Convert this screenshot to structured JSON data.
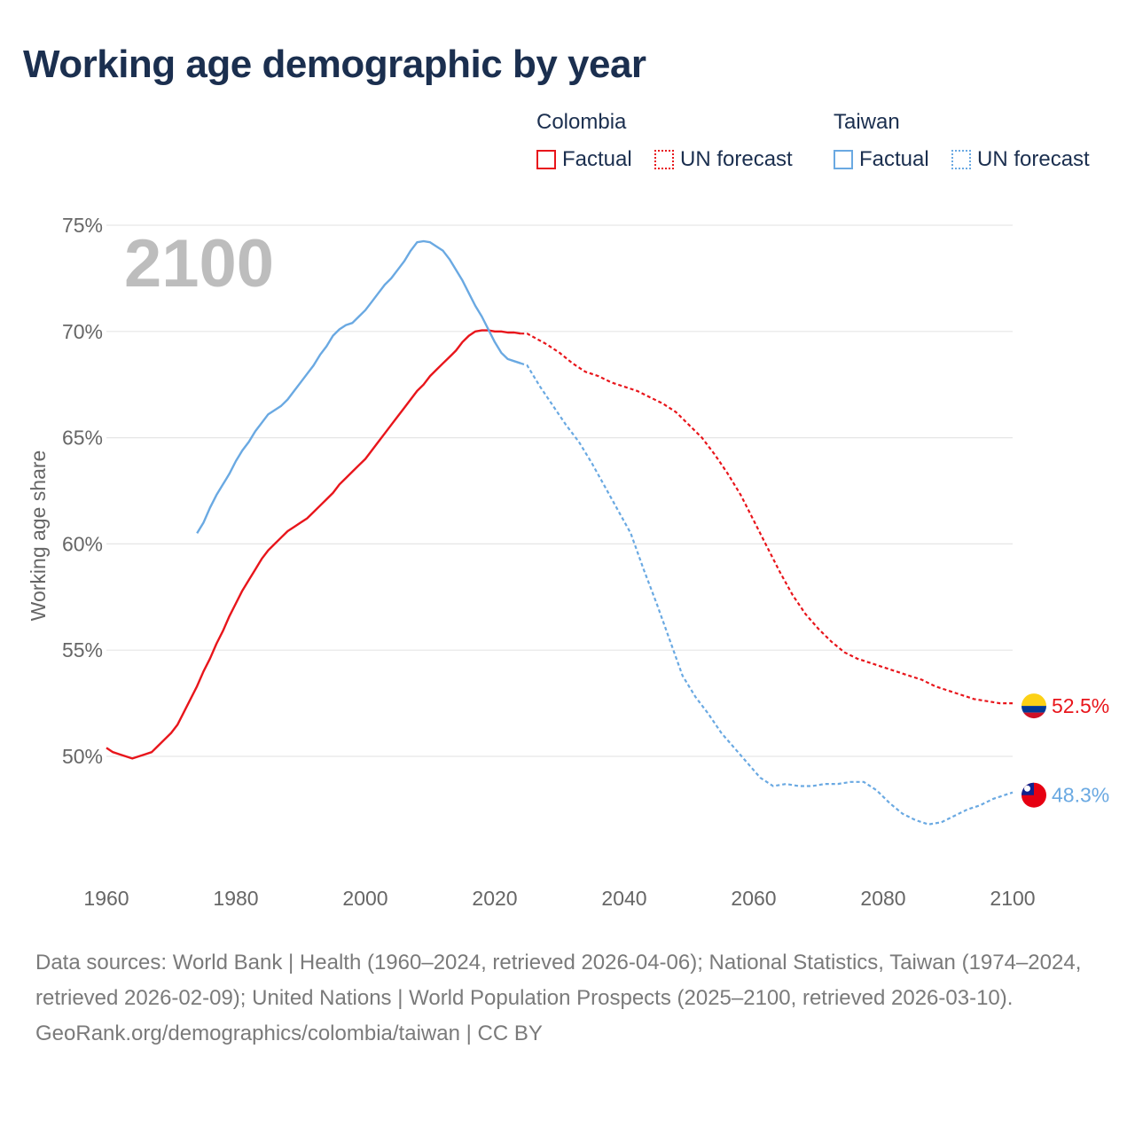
{
  "header": {
    "title": "Working age demographic by year"
  },
  "legend": {
    "groups": [
      {
        "name": "Colombia",
        "factual_label": "Factual",
        "forecast_label": "UN forecast",
        "color": "#e8151b"
      },
      {
        "name": "Taiwan",
        "factual_label": "Factual",
        "forecast_label": "UN forecast",
        "color": "#6aa9e2"
      }
    ]
  },
  "chart_data": {
    "type": "line",
    "ylabel": "Working age share",
    "xlim": [
      1960,
      2103
    ],
    "ylim": [
      44.5,
      75
    ],
    "yticks": [
      50,
      55,
      60,
      65,
      70,
      75
    ],
    "ytick_labels": [
      "50%",
      "55%",
      "60%",
      "65%",
      "70%",
      "75%"
    ],
    "xticks": [
      1960,
      1980,
      2000,
      2020,
      2040,
      2060,
      2080,
      2100
    ],
    "xtick_labels": [
      "1960",
      "1980",
      "2000",
      "2020",
      "2040",
      "2060",
      "2080",
      "2100"
    ],
    "watermark_year": "2100",
    "grid": true,
    "series": [
      {
        "name": "Colombia",
        "color": "#e8151b",
        "end_label": "52.5%",
        "flag": "colombia-flag",
        "factual": {
          "x": [
            1960,
            1961,
            1962,
            1963,
            1964,
            1965,
            1966,
            1967,
            1968,
            1969,
            1970,
            1971,
            1972,
            1973,
            1974,
            1975,
            1976,
            1977,
            1978,
            1979,
            1980,
            1981,
            1982,
            1983,
            1984,
            1985,
            1986,
            1987,
            1988,
            1989,
            1990,
            1991,
            1992,
            1993,
            1994,
            1995,
            1996,
            1997,
            1998,
            1999,
            2000,
            2001,
            2002,
            2003,
            2004,
            2005,
            2006,
            2007,
            2008,
            2009,
            2010,
            2011,
            2012,
            2013,
            2014,
            2015,
            2016,
            2017,
            2018,
            2019,
            2020,
            2021,
            2022,
            2023,
            2024
          ],
          "y": [
            50.4,
            50.2,
            50.1,
            50.0,
            49.9,
            50.0,
            50.1,
            50.2,
            50.5,
            50.8,
            51.1,
            51.5,
            52.1,
            52.7,
            53.3,
            54.0,
            54.6,
            55.3,
            55.9,
            56.6,
            57.2,
            57.8,
            58.3,
            58.8,
            59.3,
            59.7,
            60.0,
            60.3,
            60.6,
            60.8,
            61.0,
            61.2,
            61.5,
            61.8,
            62.1,
            62.4,
            62.8,
            63.1,
            63.4,
            63.7,
            64.0,
            64.4,
            64.8,
            65.2,
            65.6,
            66.0,
            66.4,
            66.8,
            67.2,
            67.5,
            67.9,
            68.2,
            68.5,
            68.8,
            69.1,
            69.5,
            69.8,
            70.0,
            70.05,
            70.05,
            70.0,
            70.0,
            69.95,
            69.95,
            69.9
          ]
        },
        "forecast": {
          "x": [
            2024,
            2025,
            2028,
            2030,
            2032,
            2034,
            2036,
            2038,
            2040,
            2042,
            2044,
            2046,
            2048,
            2050,
            2052,
            2054,
            2056,
            2058,
            2060,
            2062,
            2064,
            2066,
            2068,
            2070,
            2072,
            2074,
            2076,
            2078,
            2080,
            2082,
            2084,
            2086,
            2088,
            2090,
            2092,
            2094,
            2096,
            2098,
            2100
          ],
          "y": [
            69.9,
            69.9,
            69.4,
            69.0,
            68.5,
            68.1,
            67.9,
            67.6,
            67.4,
            67.2,
            66.9,
            66.6,
            66.2,
            65.6,
            65.0,
            64.2,
            63.3,
            62.3,
            61.1,
            59.9,
            58.7,
            57.6,
            56.7,
            56.0,
            55.4,
            54.9,
            54.6,
            54.4,
            54.2,
            54.0,
            53.8,
            53.6,
            53.3,
            53.1,
            52.9,
            52.7,
            52.6,
            52.5,
            52.5
          ]
        }
      },
      {
        "name": "Taiwan",
        "color": "#6aa9e2",
        "end_label": "48.3%",
        "flag": "taiwan-flag",
        "factual": {
          "x": [
            1974,
            1975,
            1976,
            1977,
            1978,
            1979,
            1980,
            1981,
            1982,
            1983,
            1984,
            1985,
            1986,
            1987,
            1988,
            1989,
            1990,
            1991,
            1992,
            1993,
            1994,
            1995,
            1996,
            1997,
            1998,
            1999,
            2000,
            2001,
            2002,
            2003,
            2004,
            2005,
            2006,
            2007,
            2008,
            2009,
            2010,
            2011,
            2012,
            2013,
            2014,
            2015,
            2016,
            2017,
            2018,
            2019,
            2020,
            2021,
            2022,
            2023,
            2024
          ],
          "y": [
            60.5,
            61.0,
            61.7,
            62.3,
            62.8,
            63.3,
            63.9,
            64.4,
            64.8,
            65.3,
            65.7,
            66.1,
            66.3,
            66.5,
            66.8,
            67.2,
            67.6,
            68.0,
            68.4,
            68.9,
            69.3,
            69.8,
            70.1,
            70.3,
            70.4,
            70.7,
            71.0,
            71.4,
            71.8,
            72.2,
            72.5,
            72.9,
            73.3,
            73.8,
            74.2,
            74.25,
            74.2,
            74.0,
            73.8,
            73.4,
            72.9,
            72.4,
            71.8,
            71.2,
            70.7,
            70.1,
            69.5,
            69.0,
            68.7,
            68.6,
            68.5
          ]
        },
        "forecast": {
          "x": [
            2024,
            2025,
            2027,
            2029,
            2031,
            2033,
            2035,
            2037,
            2039,
            2041,
            2043,
            2045,
            2047,
            2049,
            2051,
            2053,
            2055,
            2057,
            2059,
            2061,
            2063,
            2065,
            2067,
            2069,
            2071,
            2073,
            2075,
            2077,
            2079,
            2081,
            2083,
            2085,
            2087,
            2089,
            2091,
            2093,
            2095,
            2097,
            2099,
            2100
          ],
          "y": [
            68.5,
            68.4,
            67.4,
            66.5,
            65.6,
            64.8,
            63.8,
            62.7,
            61.6,
            60.5,
            58.8,
            57.2,
            55.5,
            53.8,
            52.8,
            52.0,
            51.1,
            50.4,
            49.7,
            49.0,
            48.6,
            48.7,
            48.6,
            48.6,
            48.7,
            48.7,
            48.8,
            48.8,
            48.4,
            47.8,
            47.3,
            47.0,
            46.8,
            46.9,
            47.2,
            47.5,
            47.7,
            48.0,
            48.2,
            48.3
          ]
        }
      }
    ]
  },
  "footer": {
    "sources": "Data sources: World Bank | Health (1960–2024, retrieved 2026-04-06); National Statistics, Taiwan (1974–2024, retrieved 2026-02-09); United Nations | World Population Prospects (2025–2100, retrieved 2026-03-10).",
    "credit": "GeoRank.org/demographics/colombia/taiwan | CC BY"
  }
}
